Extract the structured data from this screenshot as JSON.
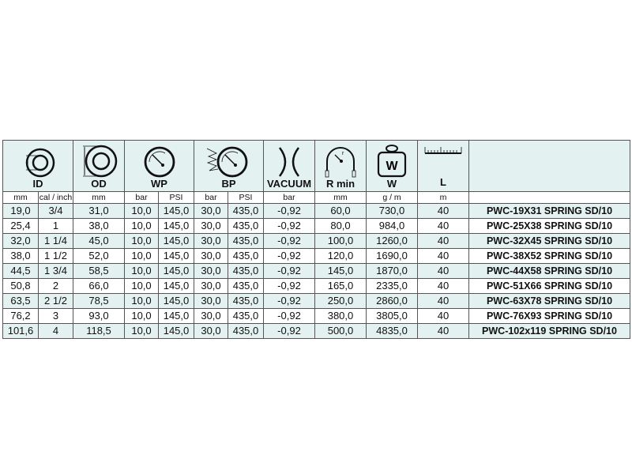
{
  "headers": {
    "id": "ID",
    "od": "OD",
    "wp": "WP",
    "bp": "BP",
    "vacuum": "VACUUM",
    "rmin": "R min",
    "w": "W",
    "l": "L",
    "weight_icon_letter": "W",
    "rmin_icon_letter": "r"
  },
  "units": {
    "id_mm": "mm",
    "id_inch": "cal / inch",
    "od": "mm",
    "wp_bar": "bar",
    "wp_psi": "PSI",
    "bp_bar": "bar",
    "bp_psi": "PSI",
    "vacuum": "bar",
    "rmin": "mm",
    "w": "g / m",
    "l": "m"
  },
  "rows": [
    [
      "19,0",
      "3/4",
      "31,0",
      "10,0",
      "145,0",
      "30,0",
      "435,0",
      "-0,92",
      "60,0",
      "730,0",
      "40",
      "PWC-19X31 SPRING SD/10"
    ],
    [
      "25,4",
      "1",
      "38,0",
      "10,0",
      "145,0",
      "30,0",
      "435,0",
      "-0,92",
      "80,0",
      "984,0",
      "40",
      "PWC-25X38 SPRING SD/10"
    ],
    [
      "32,0",
      "1 1/4",
      "45,0",
      "10,0",
      "145,0",
      "30,0",
      "435,0",
      "-0,92",
      "100,0",
      "1260,0",
      "40",
      "PWC-32X45 SPRING SD/10"
    ],
    [
      "38,0",
      "1 1/2",
      "52,0",
      "10,0",
      "145,0",
      "30,0",
      "435,0",
      "-0,92",
      "120,0",
      "1690,0",
      "40",
      "PWC-38X52 SPRING SD/10"
    ],
    [
      "44,5",
      "1 3/4",
      "58,5",
      "10,0",
      "145,0",
      "30,0",
      "435,0",
      "-0,92",
      "145,0",
      "1870,0",
      "40",
      "PWC-44X58 SPRING SD/10"
    ],
    [
      "50,8",
      "2",
      "66,0",
      "10,0",
      "145,0",
      "30,0",
      "435,0",
      "-0,92",
      "165,0",
      "2335,0",
      "40",
      "PWC-51X66 SPRING SD/10"
    ],
    [
      "63,5",
      "2 1/2",
      "78,5",
      "10,0",
      "145,0",
      "30,0",
      "435,0",
      "-0,92",
      "250,0",
      "2860,0",
      "40",
      "PWC-63X78 SPRING SD/10"
    ],
    [
      "76,2",
      "3",
      "93,0",
      "10,0",
      "145,0",
      "30,0",
      "435,0",
      "-0,92",
      "380,0",
      "3805,0",
      "40",
      "PWC-76X93 SPRING SD/10"
    ],
    [
      "101,6",
      "4",
      "118,5",
      "10,0",
      "145,0",
      "30,0",
      "435,0",
      "-0,92",
      "500,0",
      "4835,0",
      "40",
      "PWC-102x119 SPRING SD/10"
    ]
  ],
  "colors": {
    "header_bg": "#e3f1f1",
    "alt_row_bg": "#e3f1f1",
    "border": "#555555"
  }
}
